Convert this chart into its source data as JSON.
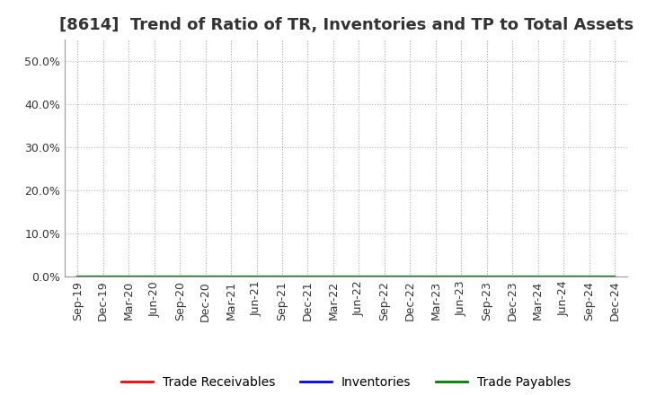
{
  "title": "[8614]  Trend of Ratio of TR, Inventories and TP to Total Assets",
  "x_labels": [
    "Sep-19",
    "Dec-19",
    "Mar-20",
    "Jun-20",
    "Sep-20",
    "Dec-20",
    "Mar-21",
    "Jun-21",
    "Sep-21",
    "Dec-21",
    "Mar-22",
    "Jun-22",
    "Sep-22",
    "Dec-22",
    "Mar-23",
    "Jun-23",
    "Sep-23",
    "Dec-23",
    "Mar-24",
    "Jun-24",
    "Sep-24",
    "Dec-24"
  ],
  "ylim": [
    0.0,
    0.55
  ],
  "yticks": [
    0.0,
    0.1,
    0.2,
    0.3,
    0.4,
    0.5
  ],
  "ytick_labels": [
    "0.0%",
    "10.0%",
    "20.0%",
    "30.0%",
    "40.0%",
    "50.0%"
  ],
  "trade_receivables": [
    0,
    0,
    0,
    0,
    0,
    0,
    0,
    0,
    0,
    0,
    0,
    0,
    0,
    0,
    0,
    0,
    0,
    0,
    0,
    0,
    0,
    0
  ],
  "inventories": [
    0,
    0,
    0,
    0,
    0,
    0,
    0,
    0,
    0,
    0,
    0,
    0,
    0,
    0,
    0,
    0,
    0,
    0,
    0,
    0,
    0,
    0
  ],
  "trade_payables": [
    0,
    0,
    0,
    0,
    0,
    0,
    0,
    0,
    0,
    0,
    0,
    0,
    0,
    0,
    0,
    0,
    0,
    0,
    0,
    0,
    0,
    0
  ],
  "line_colors": {
    "trade_receivables": "#FF0000",
    "inventories": "#0000FF",
    "trade_payables": "#008000"
  },
  "legend_labels": [
    "Trade Receivables",
    "Inventories",
    "Trade Payables"
  ],
  "background_color": "#FFFFFF",
  "plot_bg_color": "#FFFFFF",
  "grid_color": "#BBBBBB",
  "title_fontsize": 13,
  "tick_fontsize": 9,
  "legend_fontsize": 10
}
